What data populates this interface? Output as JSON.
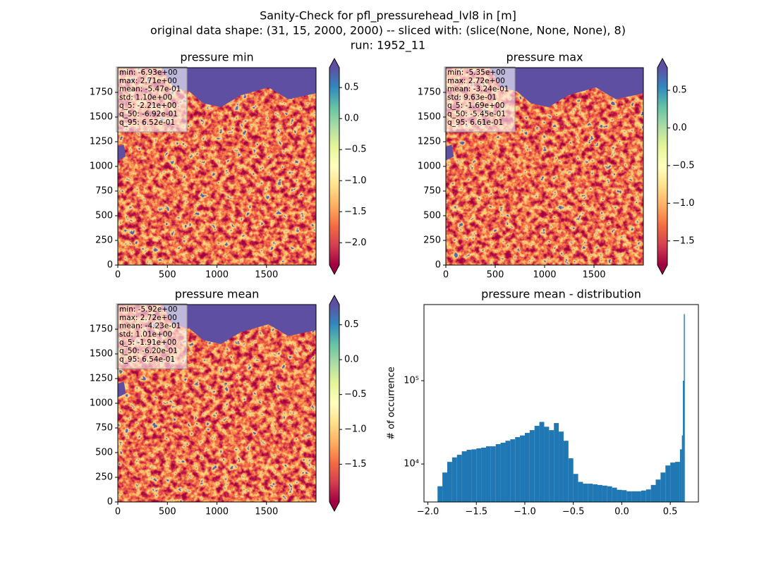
{
  "figure_title": [
    "Sanity-Check for pfl_pressurehead_lvl8 in [m]",
    "original data shape: (31, 15, 2000, 2000) -- sliced with: (slice(None, None, None), 8)",
    "run: 1952_11"
  ],
  "chart_data": [
    {
      "type": "image",
      "title": "pressure min",
      "xlim": [
        0,
        2000
      ],
      "ylim": [
        0,
        2000
      ],
      "xticks": [
        0,
        500,
        1000,
        1500
      ],
      "yticks": [
        0,
        250,
        500,
        750,
        1000,
        1250,
        1500,
        1750
      ],
      "colorbar": {
        "lim": [
          -2.36,
          0.82
        ],
        "ticks": [
          {
            "value": 0.5,
            "label": "0.5"
          },
          {
            "value": 0.0,
            "label": "0.0"
          },
          {
            "value": -0.5,
            "label": "−0.5"
          },
          {
            "value": -1.0,
            "label": "−1.0"
          },
          {
            "value": -1.5,
            "label": "−1.5"
          },
          {
            "value": -2.0,
            "label": "−2.0"
          }
        ]
      },
      "stats": [
        "min: -6.93e+00",
        "max: 2.71e+00",
        "mean: -5.47e-01",
        "std: 1.10e+00",
        "q_5: -2.21e+00",
        "q_50: -6.92e-01",
        "q_95: 6.52e-01"
      ]
    },
    {
      "type": "image",
      "title": "pressure max",
      "xlim": [
        0,
        2000
      ],
      "ylim": [
        0,
        2000
      ],
      "xticks": [
        0,
        500,
        1000,
        1500
      ],
      "yticks": [
        0,
        250,
        500,
        750,
        1000,
        1250,
        1500,
        1750
      ],
      "colorbar": {
        "lim": [
          -1.82,
          0.8
        ],
        "ticks": [
          {
            "value": 0.5,
            "label": "0.5"
          },
          {
            "value": 0.0,
            "label": "0.0"
          },
          {
            "value": -0.5,
            "label": "−0.5"
          },
          {
            "value": -1.0,
            "label": "−1.0"
          },
          {
            "value": -1.5,
            "label": "−1.5"
          }
        ]
      },
      "stats": [
        "min: -5.35e+00",
        "max: 2.72e+00",
        "mean: -3.24e-01",
        "std: 9.63e-01",
        "q_5: -1.69e+00",
        "q_50: -5.45e-01",
        "q_95: 6.61e-01"
      ]
    },
    {
      "type": "image",
      "title": "pressure mean",
      "xlim": [
        0,
        2000
      ],
      "ylim": [
        0,
        2000
      ],
      "xticks": [
        0,
        500,
        1000,
        1500
      ],
      "yticks": [
        0,
        250,
        500,
        750,
        1000,
        1250,
        1500,
        1750
      ],
      "colorbar": {
        "lim": [
          -2.04,
          0.79
        ],
        "ticks": [
          {
            "value": 0.5,
            "label": "0.5"
          },
          {
            "value": 0.0,
            "label": "0.0"
          },
          {
            "value": -0.5,
            "label": "−0.5"
          },
          {
            "value": -1.0,
            "label": "−1.0"
          },
          {
            "value": -1.5,
            "label": "−1.5"
          }
        ]
      },
      "stats": [
        "min: -5.92e+00",
        "max: 2.72e+00",
        "mean: -4.23e-01",
        "std: 1.01e+00",
        "q_5: -1.91e+00",
        "q_50: -6.20e-01",
        "q_95: 6.54e-01"
      ]
    },
    {
      "type": "histogram",
      "title": "pressure mean - distribution",
      "ylabel": "# of occurrence",
      "color": "#1f77b4",
      "log_y": true,
      "xlim": [
        -2.04,
        0.79
      ],
      "ylim": [
        3500,
        820000
      ],
      "xticks": [
        {
          "value": -2.0,
          "label": "−2.0"
        },
        {
          "value": -1.5,
          "label": "−1.5"
        },
        {
          "value": -1.0,
          "label": "−1.0"
        },
        {
          "value": -0.5,
          "label": "−0.5"
        },
        {
          "value": 0.0,
          "label": "0.0"
        },
        {
          "value": 0.5,
          "label": "0.5"
        }
      ],
      "yticks": [
        {
          "value": 10000,
          "label": "10⁴"
        },
        {
          "value": 100000,
          "label": "10⁵"
        }
      ],
      "bins": [
        -1.9,
        -1.85,
        -1.8,
        -1.75,
        -1.7,
        -1.65,
        -1.6,
        -1.55,
        -1.5,
        -1.45,
        -1.4,
        -1.35,
        -1.3,
        -1.25,
        -1.2,
        -1.15,
        -1.1,
        -1.05,
        -1.0,
        -0.95,
        -0.9,
        -0.85,
        -0.8,
        -0.75,
        -0.7,
        -0.65,
        -0.6,
        -0.55,
        -0.5,
        -0.45,
        -0.4,
        -0.35,
        -0.3,
        -0.25,
        -0.2,
        -0.15,
        -0.1,
        -0.05,
        0.0,
        0.05,
        0.1,
        0.15,
        0.2,
        0.25,
        0.3,
        0.35,
        0.4,
        0.45,
        0.5,
        0.55,
        0.6,
        0.62,
        0.63,
        0.64,
        0.65
      ],
      "values": [
        5400,
        7900,
        10600,
        12000,
        12900,
        14200,
        14800,
        15000,
        15400,
        15700,
        16300,
        16300,
        17300,
        18000,
        19000,
        19800,
        21000,
        22000,
        23600,
        25500,
        28700,
        32000,
        28000,
        25500,
        31000,
        24500,
        19000,
        11700,
        7600,
        6100,
        5800,
        5800,
        5700,
        5600,
        5500,
        5400,
        5200,
        4900,
        4850,
        4700,
        4700,
        4700,
        4800,
        4950,
        5600,
        6500,
        7900,
        9600,
        10400,
        10600,
        15000,
        22000,
        100000,
        630000
      ]
    }
  ]
}
